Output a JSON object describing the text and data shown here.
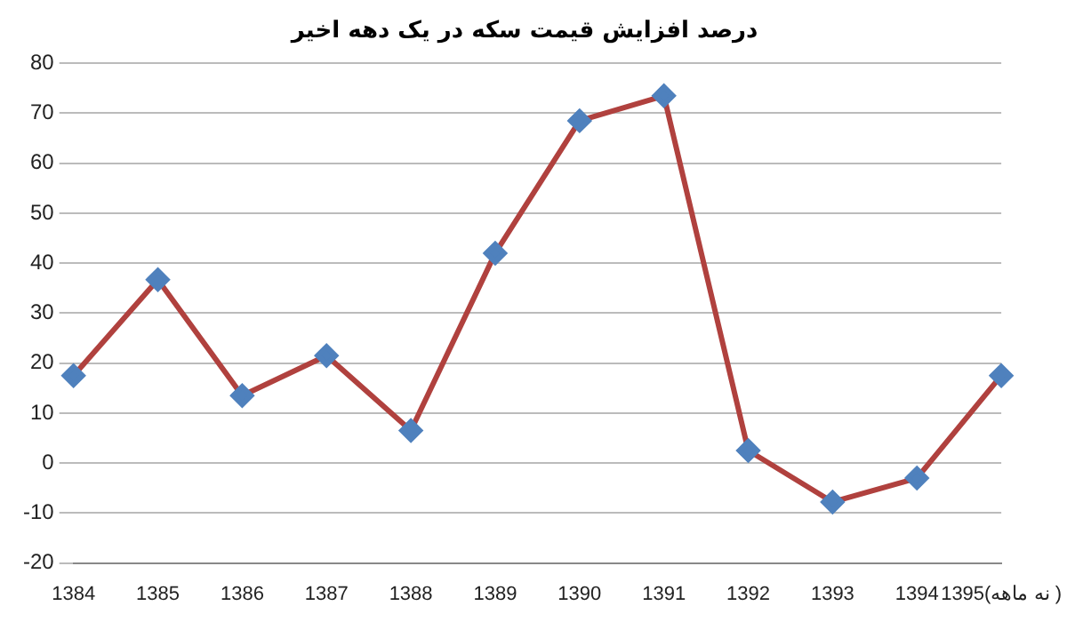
{
  "chart_data": {
    "type": "line",
    "title": "درصد افزایش قیمت سکه در یک دهه اخیر",
    "categories": [
      "1384",
      "1385",
      "1386",
      "1387",
      "1388",
      "1389",
      "1390",
      "1391",
      "1392",
      "1393",
      "1394",
      "1395(نه ماهه )"
    ],
    "series": [
      {
        "color": "#b0413e",
        "values": [
          17.5,
          36.7,
          13.5,
          21.5,
          6.5,
          42,
          68.5,
          73.5,
          2.5,
          -7.8,
          -3,
          17.5
        ]
      }
    ],
    "ylim": [
      -20,
      80
    ],
    "yticks": [
      -20,
      -10,
      0,
      10,
      20,
      30,
      40,
      50,
      60,
      70,
      80
    ],
    "grid": "y",
    "legend": false,
    "marker": "diamond",
    "line_style": "solid"
  }
}
